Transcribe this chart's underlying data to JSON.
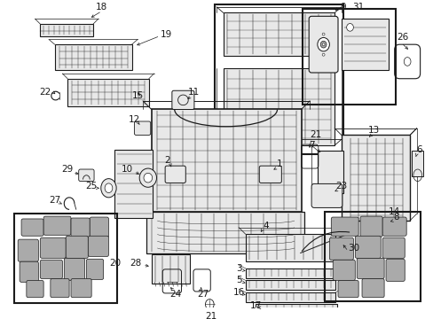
{
  "bg_color": "#ffffff",
  "line_color": "#1a1a1a",
  "figsize": [
    4.89,
    3.6
  ],
  "dpi": 100,
  "gray_fill": "#c8c8c8",
  "light_gray": "#e8e8e8",
  "mid_gray": "#aaaaaa"
}
